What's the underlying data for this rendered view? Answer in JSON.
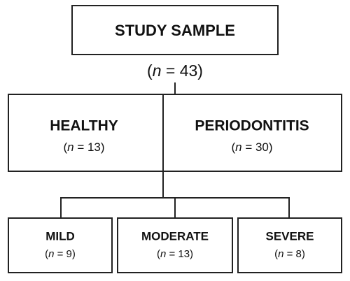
{
  "title": "STUDY SAMPLE",
  "total": "(n = 43)",
  "groups": [
    {
      "label": "HEALTHY",
      "count": "(n = 13)"
    },
    {
      "label": "PERIODONTITIS",
      "count": "(n = 30)"
    }
  ],
  "subgroups": [
    {
      "label": "MILD",
      "count": "(n = 9)"
    },
    {
      "label": "MODERATE",
      "count": "(n = 13)"
    },
    {
      "label": "SEVERE",
      "count": "(n = 8)"
    }
  ]
}
